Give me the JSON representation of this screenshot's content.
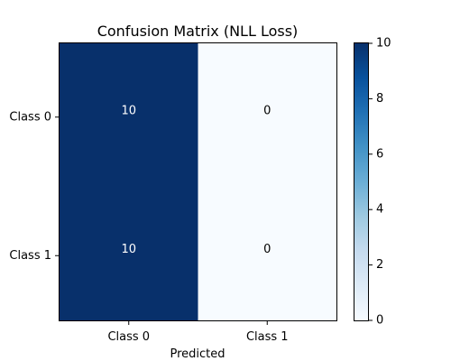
{
  "chart_data": {
    "type": "heatmap",
    "title": "Confusion Matrix (NLL Loss)",
    "xlabel": "Predicted",
    "ylabel": "",
    "x_categories": [
      "Class 0",
      "Class 1"
    ],
    "y_categories": [
      "Class 0",
      "Class 1"
    ],
    "values": [
      [
        10,
        0
      ],
      [
        10,
        0
      ]
    ],
    "color_range": [
      0,
      10
    ],
    "colormap": "Blues",
    "colorbar_ticks": [
      0,
      2,
      4,
      6,
      8,
      10
    ]
  },
  "colors": {
    "low": "#f7fbff",
    "high": "#08306b",
    "text_on_dark": "#ffffff",
    "text_on_light": "#000000",
    "axis": "#000000"
  }
}
